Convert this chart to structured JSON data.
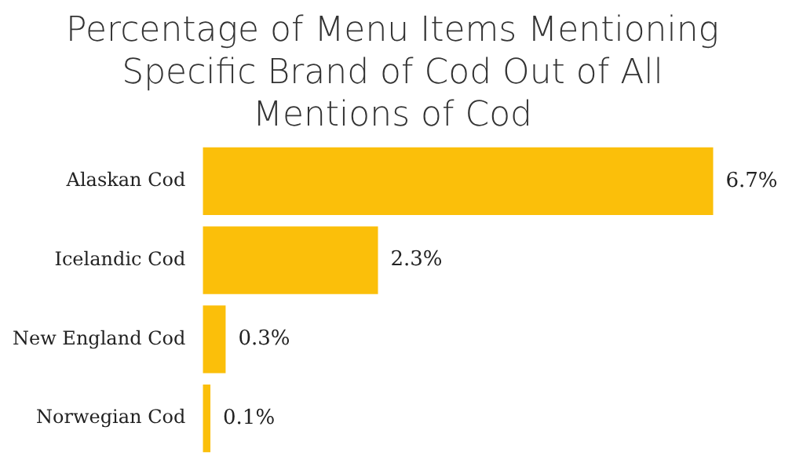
{
  "chart_data": {
    "type": "bar",
    "orientation": "horizontal",
    "title": "Percentage of Menu Items Mentioning Specific Brand of Cod Out of All Mentions of Cod",
    "categories": [
      "Alaskan Cod",
      "Icelandic Cod",
      "New England Cod",
      "Norwegian Cod"
    ],
    "values": [
      6.7,
      2.3,
      0.3,
      0.1
    ],
    "color": "#fbbf0a",
    "value_labels": [
      "6.7%",
      "2.3%",
      "0.3%",
      "0.1%"
    ]
  }
}
